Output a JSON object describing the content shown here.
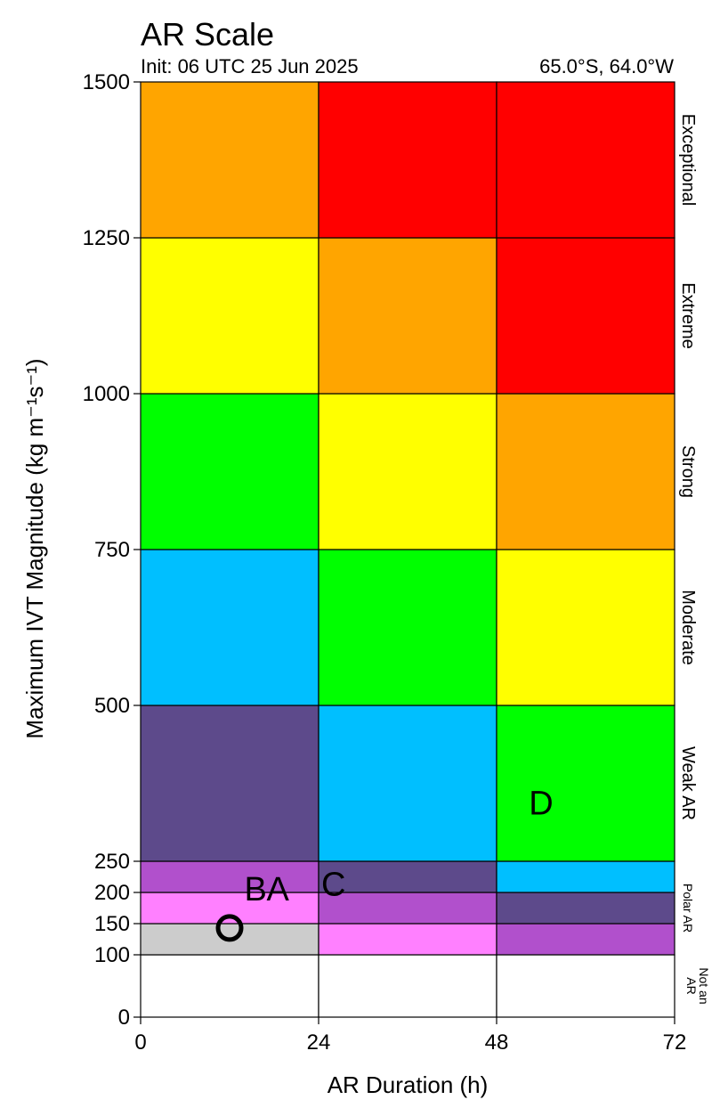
{
  "chart_data": {
    "type": "heatmap",
    "title": "AR Scale",
    "init_text": "Init: 06 UTC 25 Jun 2025",
    "location_text": "65.0°S, 64.0°W",
    "xlabel": "AR Duration (h)",
    "ylabel": "Maximum IVT Magnitude (kg m⁻¹s⁻¹)",
    "xlim": [
      0,
      72
    ],
    "ylim": [
      0,
      1500
    ],
    "x_ticks": [
      0,
      24,
      48,
      72
    ],
    "y_ticks": [
      0,
      100,
      150,
      200,
      250,
      500,
      750,
      1000,
      1250,
      1500
    ],
    "y_tick_labels": [
      "0",
      "100",
      "150",
      "200",
      "250",
      "500",
      "750",
      "1000",
      "1250",
      "1500"
    ],
    "x_tick_labels": [
      "0",
      "24",
      "48",
      "72"
    ],
    "colors": {
      "white": "#ffffff",
      "gray": "#cccccc",
      "pink": "#ff80ff",
      "orchid": "#b150cc",
      "purple": "#5d4a8b",
      "cyan": "#00bfff",
      "green": "#00ff00",
      "yellow": "#ffff00",
      "orange": "#ffa500",
      "red": "#ff0000"
    },
    "cells": [
      {
        "x0": 0,
        "x1": 24,
        "y0": 0,
        "y1": 100,
        "color": "white"
      },
      {
        "x0": 24,
        "x1": 48,
        "y0": 0,
        "y1": 100,
        "color": "white"
      },
      {
        "x0": 48,
        "x1": 72,
        "y0": 0,
        "y1": 100,
        "color": "white"
      },
      {
        "x0": 0,
        "x1": 24,
        "y0": 100,
        "y1": 150,
        "color": "gray"
      },
      {
        "x0": 24,
        "x1": 48,
        "y0": 100,
        "y1": 150,
        "color": "pink"
      },
      {
        "x0": 48,
        "x1": 72,
        "y0": 100,
        "y1": 150,
        "color": "orchid"
      },
      {
        "x0": 0,
        "x1": 24,
        "y0": 150,
        "y1": 200,
        "color": "pink"
      },
      {
        "x0": 24,
        "x1": 48,
        "y0": 150,
        "y1": 200,
        "color": "orchid"
      },
      {
        "x0": 48,
        "x1": 72,
        "y0": 150,
        "y1": 200,
        "color": "purple"
      },
      {
        "x0": 0,
        "x1": 24,
        "y0": 200,
        "y1": 250,
        "color": "orchid"
      },
      {
        "x0": 24,
        "x1": 48,
        "y0": 200,
        "y1": 250,
        "color": "purple"
      },
      {
        "x0": 48,
        "x1": 72,
        "y0": 200,
        "y1": 250,
        "color": "cyan"
      },
      {
        "x0": 0,
        "x1": 24,
        "y0": 250,
        "y1": 500,
        "color": "purple"
      },
      {
        "x0": 24,
        "x1": 48,
        "y0": 250,
        "y1": 500,
        "color": "cyan"
      },
      {
        "x0": 48,
        "x1": 72,
        "y0": 250,
        "y1": 500,
        "color": "green"
      },
      {
        "x0": 0,
        "x1": 24,
        "y0": 500,
        "y1": 750,
        "color": "cyan"
      },
      {
        "x0": 24,
        "x1": 48,
        "y0": 500,
        "y1": 750,
        "color": "green"
      },
      {
        "x0": 48,
        "x1": 72,
        "y0": 500,
        "y1": 750,
        "color": "yellow"
      },
      {
        "x0": 0,
        "x1": 24,
        "y0": 750,
        "y1": 1000,
        "color": "green"
      },
      {
        "x0": 24,
        "x1": 48,
        "y0": 750,
        "y1": 1000,
        "color": "yellow"
      },
      {
        "x0": 48,
        "x1": 72,
        "y0": 750,
        "y1": 1000,
        "color": "orange"
      },
      {
        "x0": 0,
        "x1": 24,
        "y0": 1000,
        "y1": 1250,
        "color": "yellow"
      },
      {
        "x0": 24,
        "x1": 48,
        "y0": 1000,
        "y1": 1250,
        "color": "orange"
      },
      {
        "x0": 48,
        "x1": 72,
        "y0": 1000,
        "y1": 1250,
        "color": "red"
      },
      {
        "x0": 0,
        "x1": 24,
        "y0": 1250,
        "y1": 1500,
        "color": "orange"
      },
      {
        "x0": 24,
        "x1": 48,
        "y0": 1250,
        "y1": 1500,
        "color": "red"
      },
      {
        "x0": 48,
        "x1": 72,
        "y0": 1250,
        "y1": 1500,
        "color": "red"
      }
    ],
    "categories": [
      {
        "label": "Exceptional",
        "y0": 1250,
        "y1": 1500
      },
      {
        "label": "Extreme",
        "y0": 1000,
        "y1": 1250
      },
      {
        "label": "Strong",
        "y0": 750,
        "y1": 1000
      },
      {
        "label": "Moderate",
        "y0": 500,
        "y1": 750
      },
      {
        "label": "Weak AR",
        "y0": 250,
        "y1": 500
      },
      {
        "label": "Polar AR",
        "y0": 100,
        "y1": 250
      },
      {
        "label": "Not an AR",
        "y0": 0,
        "y1": 100
      }
    ],
    "markers": [
      {
        "label": "O",
        "x": 12,
        "y": 143
      },
      {
        "label": "B",
        "x": 15.5,
        "y": 207
      },
      {
        "label": "A",
        "x": 18.5,
        "y": 207
      },
      {
        "label": "C",
        "x": 26,
        "y": 215
      },
      {
        "label": "D",
        "x": 54,
        "y": 345
      }
    ]
  }
}
